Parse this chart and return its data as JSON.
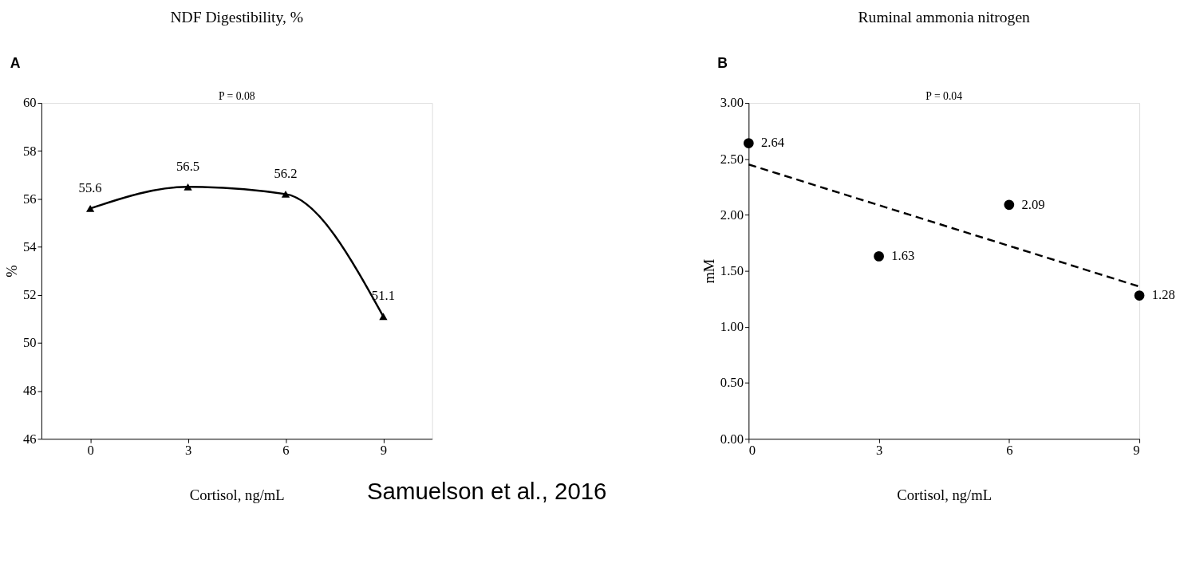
{
  "chart_data": [
    {
      "type": "line",
      "title": "NDF Digestibility, %",
      "xlabel": "Cortisol, ng/mL",
      "ylabel": "%",
      "categories": [
        "0",
        "3",
        "6",
        "9"
      ],
      "series": [
        {
          "color": "#000000",
          "values": [
            55.6,
            56.5,
            56.2,
            51.1
          ]
        }
      ],
      "ylim": [
        46,
        60
      ],
      "yticks": [
        46,
        48,
        50,
        52,
        54,
        56,
        58,
        60
      ],
      "marker": "triangle",
      "line_style": "solid",
      "data_labels": true,
      "grid": false,
      "annotations": [
        "A",
        "P = 0.08",
        "Samuelson et al., 2016"
      ]
    },
    {
      "type": "scatter",
      "title": "Ruminal ammonia nitrogen",
      "xlabel": "Cortisol, ng/mL",
      "ylabel": "mM",
      "x": [
        0,
        3,
        6,
        9
      ],
      "series": [
        {
          "type": "scatter",
          "color": "#000000",
          "marker": "circle",
          "values": [
            2.64,
            1.63,
            2.09,
            1.28
          ],
          "data_labels": true
        },
        {
          "type": "line",
          "color": "#000000",
          "line_style": "dashed",
          "x": [
            0,
            9
          ],
          "values": [
            2.45,
            1.36
          ]
        }
      ],
      "xlim": [
        0,
        9
      ],
      "xticks": [
        0,
        3,
        6,
        9
      ],
      "ylim": [
        0,
        3
      ],
      "yticks": [
        {
          "value": 0,
          "label": "0.00"
        },
        {
          "value": 0.5,
          "label": "0.50"
        },
        {
          "value": 1,
          "label": "1.00"
        },
        {
          "value": 1.5,
          "label": "1.50"
        },
        {
          "value": 2,
          "label": "2.00"
        },
        {
          "value": 2.5,
          "label": "2.50"
        },
        {
          "value": 3,
          "label": "3.00"
        }
      ],
      "grid": false,
      "annotations": [
        "B",
        "P = 0.04"
      ]
    }
  ]
}
